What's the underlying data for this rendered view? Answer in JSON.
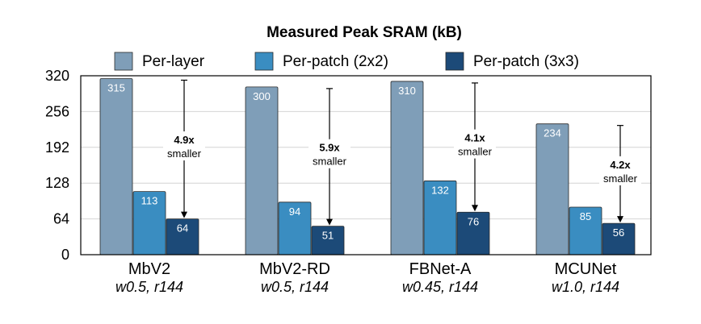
{
  "chart_data": {
    "type": "bar",
    "title": "Measured Peak SRAM (kB)",
    "xlabel": "",
    "ylabel": "",
    "ylim": [
      0,
      320
    ],
    "yticks": [
      0,
      64,
      128,
      192,
      256,
      320
    ],
    "grid": true,
    "legend_position": "top",
    "categories": [
      "MbV2",
      "MbV2-RD",
      "FBNet-A",
      "MCUNet"
    ],
    "subcategories": [
      "w0.5, r144",
      "w0.5, r144",
      "w0.45, r144",
      "w1.0, r144"
    ],
    "series": [
      {
        "name": "Per-layer",
        "color": "#7f9eb8",
        "values": [
          315,
          300,
          310,
          234
        ]
      },
      {
        "name": "Per-patch (2x2)",
        "color": "#3a8dc1",
        "values": [
          113,
          94,
          132,
          85
        ]
      },
      {
        "name": "Per-patch (3x3)",
        "color": "#1c4a78",
        "values": [
          64,
          51,
          76,
          56
        ]
      }
    ],
    "annotations": [
      {
        "factor": "4.9x",
        "text": "smaller"
      },
      {
        "factor": "5.9x",
        "text": "smaller"
      },
      {
        "factor": "4.1x",
        "text": "smaller"
      },
      {
        "factor": "4.2x",
        "text": "smaller"
      }
    ]
  }
}
